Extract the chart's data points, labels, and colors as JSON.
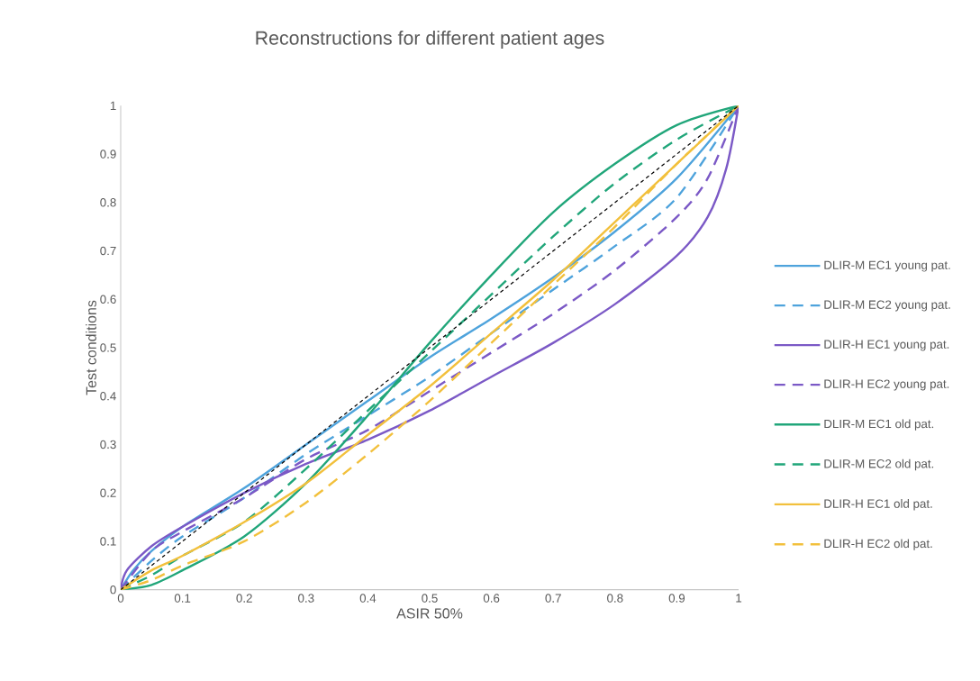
{
  "chart_data": {
    "type": "line",
    "title": "Reconstructions for different patient ages",
    "xlabel": "ASIR 50%",
    "ylabel": "Test conditions",
    "xlim": [
      0,
      1
    ],
    "ylim": [
      0,
      1
    ],
    "xticks": [
      0,
      0.1,
      0.2,
      0.3,
      0.4,
      0.5,
      0.6,
      0.7,
      0.8,
      0.9,
      1
    ],
    "yticks": [
      0,
      0.1,
      0.2,
      0.3,
      0.4,
      0.5,
      0.6,
      0.7,
      0.8,
      0.9,
      1
    ],
    "grid": false,
    "legend": "right",
    "marker": "none",
    "series": [
      {
        "name": "DLIR-M EC1 young pat.",
        "color": "#4ea3dc",
        "line_style": "solid",
        "x": [
          0,
          0.02,
          0.05,
          0.1,
          0.2,
          0.3,
          0.4,
          0.5,
          0.6,
          0.7,
          0.8,
          0.9,
          1
        ],
        "values": [
          0,
          0.04,
          0.08,
          0.13,
          0.21,
          0.3,
          0.39,
          0.48,
          0.56,
          0.645,
          0.74,
          0.85,
          1
        ]
      },
      {
        "name": "DLIR-M EC2 young pat.",
        "color": "#4ea3dc",
        "line_style": "dashed",
        "x": [
          0,
          0.05,
          0.1,
          0.2,
          0.3,
          0.4,
          0.5,
          0.6,
          0.7,
          0.8,
          0.9,
          1
        ],
        "values": [
          0,
          0.06,
          0.11,
          0.19,
          0.28,
          0.36,
          0.44,
          0.53,
          0.62,
          0.71,
          0.81,
          1
        ]
      },
      {
        "name": "DLIR-H EC1 young pat.",
        "color": "#7b59c6",
        "line_style": "solid",
        "x": [
          0,
          0.01,
          0.05,
          0.1,
          0.2,
          0.3,
          0.4,
          0.5,
          0.6,
          0.7,
          0.8,
          0.9,
          0.95,
          0.98,
          1
        ],
        "values": [
          0,
          0.04,
          0.09,
          0.13,
          0.2,
          0.26,
          0.31,
          0.37,
          0.44,
          0.51,
          0.59,
          0.69,
          0.77,
          0.87,
          1
        ]
      },
      {
        "name": "DLIR-H EC2 young pat.",
        "color": "#7b59c6",
        "line_style": "dashed",
        "x": [
          0,
          0.05,
          0.1,
          0.2,
          0.3,
          0.4,
          0.5,
          0.6,
          0.7,
          0.8,
          0.9,
          0.95,
          1
        ],
        "values": [
          0,
          0.08,
          0.12,
          0.19,
          0.27,
          0.33,
          0.41,
          0.49,
          0.57,
          0.66,
          0.77,
          0.85,
          1
        ]
      },
      {
        "name": "DLIR-M EC1 old pat.",
        "color": "#21a67a",
        "line_style": "solid",
        "x": [
          0,
          0.05,
          0.1,
          0.2,
          0.3,
          0.4,
          0.5,
          0.6,
          0.7,
          0.8,
          0.9,
          1
        ],
        "values": [
          0,
          0.01,
          0.04,
          0.11,
          0.22,
          0.36,
          0.51,
          0.65,
          0.78,
          0.88,
          0.96,
          1
        ]
      },
      {
        "name": "DLIR-M EC2 old pat.",
        "color": "#21a67a",
        "line_style": "dashed",
        "x": [
          0,
          0.05,
          0.1,
          0.2,
          0.3,
          0.4,
          0.5,
          0.6,
          0.7,
          0.8,
          0.9,
          1
        ],
        "values": [
          0,
          0.03,
          0.07,
          0.14,
          0.25,
          0.37,
          0.49,
          0.61,
          0.73,
          0.84,
          0.93,
          1
        ]
      },
      {
        "name": "DLIR-H EC1 old pat.",
        "color": "#f2c03c",
        "line_style": "solid",
        "x": [
          0,
          0.05,
          0.1,
          0.2,
          0.3,
          0.4,
          0.5,
          0.6,
          0.7,
          0.8,
          0.9,
          1
        ],
        "values": [
          0,
          0.04,
          0.07,
          0.14,
          0.22,
          0.32,
          0.42,
          0.53,
          0.64,
          0.76,
          0.88,
          1
        ]
      },
      {
        "name": "DLIR-H EC2 old pat.",
        "color": "#f2c03c",
        "line_style": "dashed",
        "x": [
          0,
          0.05,
          0.1,
          0.2,
          0.3,
          0.4,
          0.5,
          0.6,
          0.7,
          0.8,
          0.9,
          1
        ],
        "values": [
          0,
          0.02,
          0.05,
          0.1,
          0.18,
          0.28,
          0.39,
          0.51,
          0.63,
          0.75,
          0.88,
          1
        ]
      },
      {
        "color": "#000000",
        "line_style": "dashed",
        "x": [
          0,
          1
        ],
        "values": [
          0,
          1
        ]
      }
    ]
  }
}
